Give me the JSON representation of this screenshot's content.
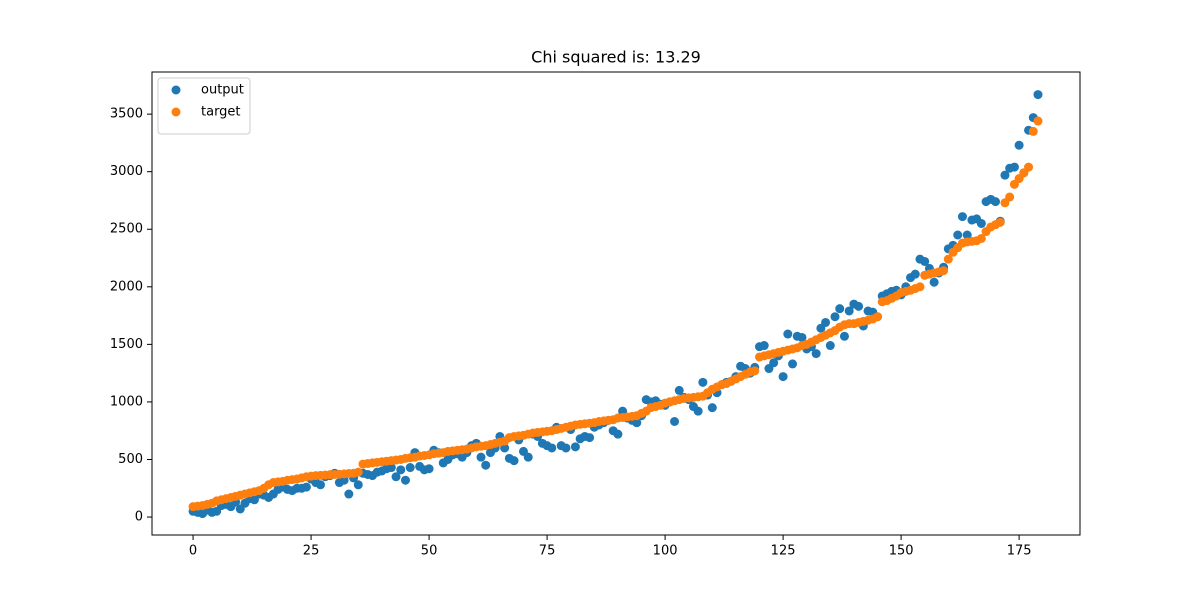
{
  "chart_data": {
    "type": "scatter",
    "title": "Chi squared is: 13.29",
    "x": [
      0,
      1,
      2,
      3,
      4,
      5,
      6,
      7,
      8,
      9,
      10,
      11,
      12,
      13,
      14,
      15,
      16,
      17,
      18,
      19,
      20,
      21,
      22,
      23,
      24,
      25,
      26,
      27,
      28,
      29,
      30,
      31,
      32,
      33,
      34,
      35,
      36,
      37,
      38,
      39,
      40,
      41,
      42,
      43,
      44,
      45,
      46,
      47,
      48,
      49,
      50,
      51,
      52,
      53,
      54,
      55,
      56,
      57,
      58,
      59,
      60,
      61,
      62,
      63,
      64,
      65,
      66,
      67,
      68,
      69,
      70,
      71,
      72,
      73,
      74,
      75,
      76,
      77,
      78,
      79,
      80,
      81,
      82,
      83,
      84,
      85,
      86,
      87,
      88,
      89,
      90,
      91,
      92,
      93,
      94,
      95,
      96,
      97,
      98,
      99,
      100,
      101,
      102,
      103,
      104,
      105,
      106,
      107,
      108,
      109,
      110,
      111,
      112,
      113,
      114,
      115,
      116,
      117,
      118,
      119,
      120,
      121,
      122,
      123,
      124,
      125,
      126,
      127,
      128,
      129,
      130,
      131,
      132,
      133,
      134,
      135,
      136,
      137,
      138,
      139,
      140,
      141,
      142,
      143,
      144,
      145,
      146,
      147,
      148,
      149,
      150,
      151,
      152,
      153,
      154,
      155,
      156,
      157,
      158,
      159,
      160,
      161,
      162,
      163,
      164,
      165,
      166,
      167,
      168,
      169,
      170,
      171,
      172,
      173,
      174,
      175,
      176,
      177,
      178,
      179
    ],
    "series": [
      {
        "name": "output",
        "color": "#1f77b4",
        "values": [
          50,
          40,
          30,
          60,
          40,
          50,
          100,
          110,
          90,
          130,
          70,
          120,
          160,
          150,
          200,
          190,
          170,
          200,
          240,
          260,
          240,
          230,
          250,
          250,
          260,
          330,
          300,
          280,
          350,
          360,
          380,
          300,
          320,
          200,
          340,
          280,
          380,
          370,
          360,
          390,
          400,
          420,
          430,
          350,
          410,
          320,
          430,
          560,
          440,
          410,
          420,
          580,
          560,
          470,
          500,
          540,
          550,
          520,
          560,
          620,
          640,
          520,
          450,
          560,
          600,
          700,
          600,
          510,
          490,
          670,
          570,
          520,
          720,
          700,
          640,
          620,
          600,
          780,
          620,
          600,
          760,
          610,
          680,
          700,
          690,
          780,
          800,
          820,
          840,
          750,
          720,
          920,
          860,
          840,
          820,
          880,
          1020,
          1000,
          1010,
          980,
          970,
          1000,
          830,
          1100,
          1040,
          1020,
          960,
          920,
          1170,
          1060,
          950,
          1080,
          1150,
          1170,
          1180,
          1220,
          1310,
          1290,
          1250,
          1300,
          1480,
          1490,
          1290,
          1340,
          1400,
          1220,
          1590,
          1330,
          1570,
          1560,
          1460,
          1480,
          1420,
          1640,
          1690,
          1490,
          1740,
          1810,
          1570,
          1790,
          1850,
          1830,
          1660,
          1790,
          1780,
          1740,
          1920,
          1940,
          1960,
          1970,
          1930,
          2000,
          2080,
          2110,
          2240,
          2220,
          2160,
          2040,
          2120,
          2170,
          2330,
          2360,
          2450,
          2610,
          2450,
          2580,
          2590,
          2550,
          2740,
          2760,
          2740,
          2570,
          2970,
          3030,
          3040,
          3230,
          2990,
          3360,
          3470,
          3670
        ]
      },
      {
        "name": "target",
        "color": "#ff7f0e",
        "values": [
          90,
          95,
          100,
          110,
          120,
          140,
          150,
          160,
          170,
          180,
          190,
          200,
          210,
          220,
          230,
          250,
          280,
          300,
          305,
          310,
          320,
          325,
          330,
          340,
          350,
          355,
          360,
          362,
          365,
          368,
          370,
          372,
          375,
          378,
          380,
          390,
          460,
          465,
          470,
          475,
          480,
          485,
          490,
          495,
          500,
          510,
          515,
          520,
          530,
          535,
          540,
          550,
          555,
          560,
          570,
          575,
          580,
          585,
          590,
          600,
          610,
          615,
          620,
          630,
          640,
          650,
          660,
          690,
          700,
          705,
          710,
          720,
          730,
          735,
          740,
          745,
          750,
          760,
          770,
          780,
          790,
          800,
          805,
          810,
          815,
          820,
          830,
          835,
          840,
          845,
          860,
          865,
          870,
          875,
          880,
          900,
          920,
          950,
          960,
          970,
          990,
          1000,
          1010,
          1020,
          1030,
          1035,
          1040,
          1045,
          1050,
          1080,
          1110,
          1130,
          1150,
          1160,
          1180,
          1200,
          1220,
          1240,
          1260,
          1270,
          1390,
          1400,
          1410,
          1420,
          1430,
          1440,
          1450,
          1460,
          1470,
          1490,
          1500,
          1520,
          1540,
          1560,
          1580,
          1600,
          1620,
          1650,
          1670,
          1680,
          1680,
          1690,
          1700,
          1710,
          1720,
          1740,
          1870,
          1880,
          1900,
          1920,
          1950,
          1960,
          1970,
          1985,
          2000,
          2100,
          2110,
          2120,
          2130,
          2140,
          2240,
          2300,
          2340,
          2380,
          2390,
          2395,
          2400,
          2420,
          2480,
          2520,
          2540,
          2560,
          2730,
          2780,
          2890,
          2940,
          2990,
          3040,
          3350,
          3440
        ]
      }
    ],
    "xlim": [
      -8.7,
      187.9
    ],
    "ylim": [
      -156,
      3866
    ],
    "xticks": [
      0,
      25,
      50,
      75,
      100,
      125,
      150,
      175
    ],
    "yticks": [
      0,
      500,
      1000,
      1500,
      2000,
      2500,
      3000,
      3500
    ],
    "legend": "upper left"
  }
}
